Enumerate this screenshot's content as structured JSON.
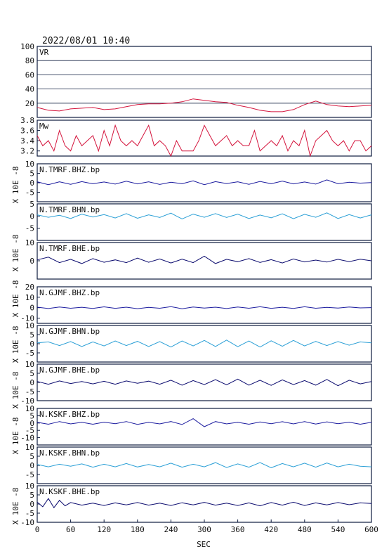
{
  "header": {
    "title": "2022/08/01 10:40"
  },
  "x_axis": {
    "label": "SEC",
    "range": [
      0,
      600
    ],
    "ticks": [
      0,
      60,
      120,
      180,
      240,
      300,
      360,
      420,
      480,
      540,
      600
    ]
  },
  "unit_label": "X 10E -8",
  "colors": {
    "frame": "#0d1b3e",
    "vr": "#d4143c",
    "mw": "#d4143c",
    "bhz": "#1a1a9e",
    "bhn": "#2a9fd6",
    "bhe": "#0a0a6e"
  },
  "chart_data": [
    {
      "type": "line",
      "label": "VR",
      "ylim": [
        0,
        100
      ],
      "yticks": [
        20,
        40,
        60,
        80,
        100
      ],
      "grid": true,
      "color": "#d4143c",
      "x": [
        0,
        20,
        40,
        60,
        80,
        100,
        120,
        140,
        160,
        180,
        200,
        220,
        240,
        260,
        280,
        300,
        320,
        340,
        360,
        380,
        400,
        420,
        440,
        460,
        480,
        500,
        520,
        540,
        560,
        580,
        600
      ],
      "y": [
        14,
        10,
        9,
        12,
        13,
        14,
        11,
        12,
        15,
        18,
        19,
        19,
        20,
        22,
        26,
        24,
        22,
        21,
        17,
        14,
        10,
        8,
        8,
        11,
        18,
        23,
        18,
        16,
        15,
        16,
        17
      ]
    },
    {
      "type": "line",
      "label": "Mw",
      "ylim": [
        3.1,
        3.8
      ],
      "yticks": [
        3.2,
        3.4,
        3.6,
        3.8
      ],
      "color": "#d4143c",
      "x": [
        0,
        10,
        20,
        30,
        40,
        50,
        60,
        70,
        80,
        90,
        100,
        110,
        120,
        130,
        140,
        150,
        160,
        170,
        180,
        190,
        200,
        210,
        220,
        230,
        240,
        250,
        260,
        270,
        280,
        290,
        300,
        310,
        320,
        330,
        340,
        350,
        360,
        370,
        380,
        390,
        400,
        410,
        420,
        430,
        440,
        450,
        460,
        470,
        480,
        490,
        500,
        510,
        520,
        530,
        540,
        550,
        560,
        570,
        580,
        590,
        600
      ],
      "y": [
        3.5,
        3.3,
        3.4,
        3.2,
        3.6,
        3.3,
        3.2,
        3.5,
        3.3,
        3.4,
        3.5,
        3.2,
        3.6,
        3.3,
        3.7,
        3.4,
        3.3,
        3.4,
        3.3,
        3.5,
        3.7,
        3.3,
        3.4,
        3.3,
        3.1,
        3.4,
        3.2,
        3.2,
        3.2,
        3.4,
        3.7,
        3.5,
        3.3,
        3.4,
        3.5,
        3.3,
        3.4,
        3.3,
        3.3,
        3.6,
        3.2,
        3.3,
        3.4,
        3.3,
        3.5,
        3.2,
        3.4,
        3.3,
        3.6,
        3.1,
        3.4,
        3.5,
        3.6,
        3.4,
        3.3,
        3.4,
        3.2,
        3.4,
        3.4,
        3.2,
        3.3
      ]
    },
    {
      "type": "line",
      "label": "N.TMRF.BHZ.bp",
      "ylim": [
        -10,
        10
      ],
      "yticks": [
        -5,
        0,
        5,
        10
      ],
      "color": "#1a1a9e",
      "x": [
        0,
        20,
        40,
        60,
        80,
        100,
        120,
        140,
        160,
        180,
        200,
        220,
        240,
        260,
        280,
        300,
        320,
        340,
        360,
        380,
        400,
        420,
        440,
        460,
        480,
        500,
        520,
        540,
        560,
        580,
        600
      ],
      "y": [
        0.5,
        -1,
        0.5,
        -0.8,
        0.6,
        -0.5,
        0.4,
        -0.7,
        0.8,
        -0.6,
        0.5,
        -0.9,
        0.3,
        -0.5,
        1,
        -1,
        0.6,
        -0.4,
        0.5,
        -0.8,
        0.7,
        -0.5,
        0.9,
        -0.6,
        0.4,
        -0.7,
        1.5,
        -0.5,
        0.3,
        -0.2,
        0.1
      ]
    },
    {
      "type": "line",
      "label": "N.TMRF.BHN.bp",
      "ylim": [
        -10,
        5
      ],
      "yticks": [
        -5,
        0,
        5
      ],
      "color": "#2a9fd6",
      "x": [
        0,
        20,
        40,
        60,
        80,
        100,
        120,
        140,
        160,
        180,
        200,
        220,
        240,
        260,
        280,
        300,
        320,
        340,
        360,
        380,
        400,
        420,
        440,
        460,
        480,
        500,
        520,
        540,
        560,
        580,
        600
      ],
      "y": [
        0.5,
        -0.5,
        0.3,
        -1,
        0.8,
        -0.4,
        0.6,
        -0.8,
        1,
        -0.9,
        0.5,
        -0.6,
        1.2,
        -1.2,
        0.8,
        -0.5,
        1,
        -0.6,
        0.8,
        -1,
        0.4,
        -0.7,
        0.9,
        -1.1,
        0.7,
        -0.5,
        1.3,
        -1,
        0.6,
        -0.8,
        0.5
      ]
    },
    {
      "type": "line",
      "label": "N.TMRF.BHE.bp",
      "ylim": [
        -10,
        10
      ],
      "yticks": [
        0,
        10
      ],
      "color": "#0a0a6e",
      "x": [
        0,
        20,
        40,
        60,
        80,
        100,
        120,
        140,
        160,
        180,
        200,
        220,
        240,
        260,
        280,
        300,
        320,
        340,
        360,
        380,
        400,
        420,
        440,
        460,
        480,
        500,
        520,
        540,
        560,
        580,
        600
      ],
      "y": [
        0.5,
        2,
        -1,
        0.8,
        -1.5,
        1.2,
        -0.8,
        0.5,
        -1,
        1.5,
        -0.8,
        1,
        -1.2,
        0.9,
        -1,
        2.5,
        -1.5,
        0.8,
        -0.5,
        1.2,
        -0.9,
        0.6,
        -1.2,
        1,
        -0.6,
        0.4,
        -0.7,
        0.8,
        -0.5,
        0.9,
        0
      ]
    },
    {
      "type": "line",
      "label": "N.GJMF.BHZ.bp",
      "ylim": [
        -15,
        20
      ],
      "yticks": [
        -10,
        0,
        10,
        20
      ],
      "color": "#1a1a9e",
      "x": [
        0,
        20,
        40,
        60,
        80,
        100,
        120,
        140,
        160,
        180,
        200,
        220,
        240,
        260,
        280,
        300,
        320,
        340,
        360,
        380,
        400,
        420,
        440,
        460,
        480,
        500,
        520,
        540,
        560,
        580,
        600
      ],
      "y": [
        0.5,
        -0.8,
        0.6,
        -0.5,
        0.4,
        -0.7,
        0.8,
        -0.6,
        0.5,
        -0.9,
        0.3,
        -0.5,
        1,
        -1,
        0.6,
        -0.4,
        0.5,
        -0.8,
        0.7,
        -0.5,
        0.9,
        -0.6,
        0.4,
        -0.7,
        0.9,
        -0.5,
        0.3,
        -0.4,
        0.6,
        -0.2,
        0.1
      ]
    },
    {
      "type": "line",
      "label": "N.GJMF.BHN.bp",
      "ylim": [
        -10,
        10
      ],
      "yticks": [
        -5,
        0,
        5,
        10
      ],
      "color": "#2a9fd6",
      "x": [
        0,
        20,
        40,
        60,
        80,
        100,
        120,
        140,
        160,
        180,
        200,
        220,
        240,
        260,
        280,
        300,
        320,
        340,
        360,
        380,
        400,
        420,
        440,
        460,
        480,
        500,
        520,
        540,
        560,
        580,
        600
      ],
      "y": [
        0.5,
        1,
        -1,
        1.2,
        -1.5,
        1,
        -1.2,
        1.5,
        -1,
        1.3,
        -1.5,
        1.2,
        -1.8,
        1.5,
        -1.2,
        1.8,
        -1.5,
        2,
        -1.6,
        1.5,
        -1.8,
        1.6,
        -1.4,
        1.8,
        -1.2,
        1.3,
        -1,
        1.2,
        -0.8,
        1,
        0.5
      ]
    },
    {
      "type": "line",
      "label": "N.GJMF.BHE.bp",
      "ylim": [
        -10,
        10
      ],
      "yticks": [
        -10,
        -5,
        0,
        5,
        10
      ],
      "color": "#0a0a6e",
      "x": [
        0,
        20,
        40,
        60,
        80,
        100,
        120,
        140,
        160,
        180,
        200,
        220,
        240,
        260,
        280,
        300,
        320,
        340,
        360,
        380,
        400,
        420,
        440,
        460,
        480,
        500,
        520,
        540,
        560,
        580,
        600
      ],
      "y": [
        0.5,
        -1,
        0.8,
        -0.6,
        0.5,
        -0.8,
        0.6,
        -1,
        0.8,
        -0.5,
        0.7,
        -1,
        1.2,
        -1.5,
        1,
        -1.2,
        1.5,
        -1.3,
        1.8,
        -1.5,
        1.2,
        -1.6,
        1.4,
        -1.2,
        1,
        -1.5,
        1.6,
        -1.8,
        1.2,
        -0.8,
        0.5
      ]
    },
    {
      "type": "line",
      "label": "N.KSKF.BHZ.bp",
      "ylim": [
        -15,
        10
      ],
      "yticks": [
        -10,
        -5,
        0,
        5,
        10
      ],
      "color": "#1a1a9e",
      "x": [
        0,
        20,
        40,
        60,
        80,
        100,
        120,
        140,
        160,
        180,
        200,
        220,
        240,
        260,
        280,
        300,
        320,
        340,
        360,
        380,
        400,
        420,
        440,
        460,
        480,
        500,
        520,
        540,
        560,
        580,
        600
      ],
      "y": [
        0.5,
        -0.8,
        1,
        -0.6,
        0.5,
        -0.8,
        0.6,
        -0.5,
        1,
        -0.9,
        0.5,
        -0.6,
        1,
        -1,
        3,
        -2.5,
        1,
        -0.6,
        0.5,
        -0.8,
        0.7,
        -0.5,
        0.9,
        -0.6,
        1,
        -0.7,
        0.8,
        -0.5,
        0.6,
        -0.8,
        0.5
      ]
    },
    {
      "type": "line",
      "label": "N.KSKF.BHN.bp",
      "ylim": [
        -10,
        10
      ],
      "yticks": [
        -5,
        0,
        5,
        10
      ],
      "color": "#2a9fd6",
      "x": [
        0,
        20,
        40,
        60,
        80,
        100,
        120,
        140,
        160,
        180,
        200,
        220,
        240,
        260,
        280,
        300,
        320,
        340,
        360,
        380,
        400,
        420,
        440,
        460,
        480,
        500,
        520,
        540,
        560,
        580,
        600
      ],
      "y": [
        0.5,
        -0.8,
        0.6,
        -0.5,
        0.8,
        -1,
        0.6,
        -0.8,
        1,
        -0.9,
        0.5,
        -0.8,
        1.2,
        -1,
        0.6,
        -0.8,
        1.5,
        -1.2,
        0.8,
        -1,
        1.5,
        -1.3,
        1,
        -0.8,
        1.2,
        -1,
        1.3,
        -0.8,
        0.6,
        -0.5,
        -0.8
      ]
    },
    {
      "type": "line",
      "label": "N.KSKF.BHE.bp",
      "ylim": [
        -10,
        10
      ],
      "yticks": [
        -10,
        -5,
        0,
        5,
        10
      ],
      "color": "#0a0a6e",
      "x": [
        0,
        10,
        20,
        30,
        40,
        50,
        60,
        80,
        100,
        120,
        140,
        160,
        180,
        200,
        220,
        240,
        260,
        280,
        300,
        320,
        340,
        360,
        380,
        400,
        420,
        440,
        460,
        480,
        500,
        520,
        540,
        560,
        580,
        600
      ],
      "y": [
        1,
        -1.5,
        3,
        -2,
        2,
        -1,
        0.8,
        -0.6,
        0.5,
        -0.8,
        0.6,
        -0.5,
        0.8,
        -0.6,
        0.5,
        -0.8,
        0.7,
        -0.5,
        0.9,
        -0.6,
        0.5,
        -0.8,
        0.6,
        -1,
        0.8,
        -0.6,
        1,
        -0.8,
        0.6,
        -0.5,
        0.8,
        -0.4,
        0.6,
        0.3
      ]
    }
  ]
}
